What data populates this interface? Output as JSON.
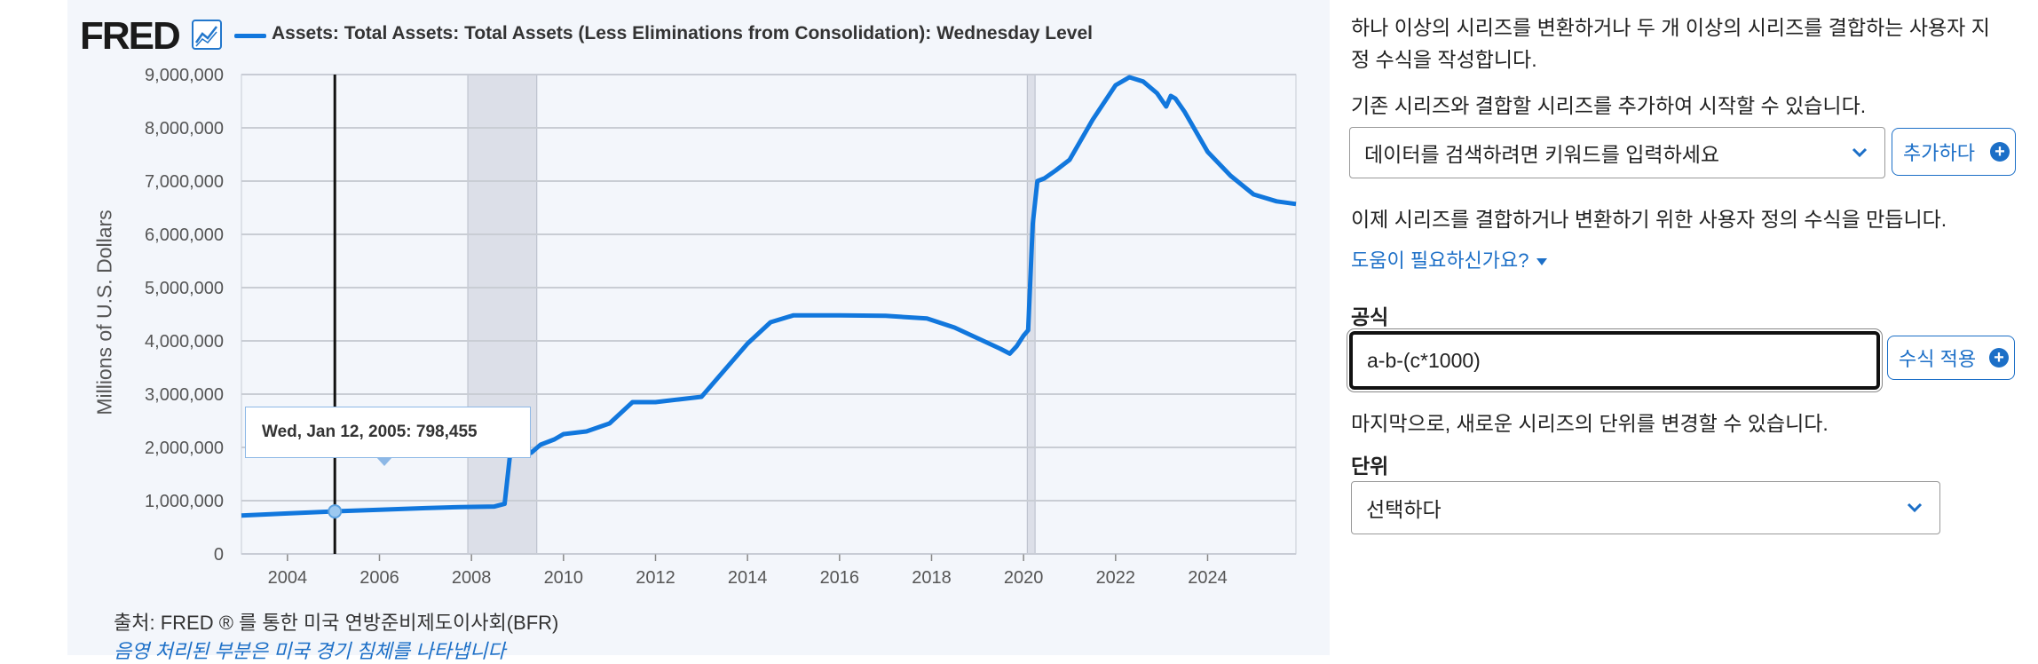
{
  "header": {
    "logo_text": "FRED",
    "series_title": "Assets: Total Assets: Total Assets (Less Eliminations from Consolidation): Wednesday Level"
  },
  "colors": {
    "series": "#1177dd",
    "recession": "#dcdfe8",
    "accent": "#1c6fc7"
  },
  "chart_data": {
    "type": "line",
    "title": "",
    "ylabel": "Millions of U.S. Dollars",
    "xlabel": "",
    "xlim": [
      2003.0,
      2025.92
    ],
    "ylim": [
      0,
      9000000
    ],
    "x_ticks": [
      "2004",
      "2006",
      "2008",
      "2010",
      "2012",
      "2014",
      "2016",
      "2018",
      "2020",
      "2022",
      "2024"
    ],
    "y_ticks": [
      "0",
      "1,000,000",
      "2,000,000",
      "3,000,000",
      "4,000,000",
      "5,000,000",
      "6,000,000",
      "7,000,000",
      "8,000,000",
      "9,000,000"
    ],
    "grid": true,
    "legend": "top-left",
    "recessions": [
      [
        2007.92,
        2009.42
      ],
      [
        2020.08,
        2020.25
      ]
    ],
    "crosshair_x": 2005.03,
    "tooltip": {
      "date": "Wed, Jan 12, 2005:",
      "value": "798,455"
    },
    "series": [
      {
        "name": "Assets: Total Assets: Total Assets (Less Eliminations from Consolidation): Wednesday Level",
        "x": [
          2003.0,
          2004.0,
          2005.0,
          2006.0,
          2007.0,
          2007.75,
          2008.5,
          2008.72,
          2008.85,
          2009.0,
          2009.3,
          2009.5,
          2009.8,
          2010.0,
          2010.5,
          2011.0,
          2011.5,
          2012.0,
          2012.5,
          2013.0,
          2013.5,
          2014.0,
          2014.5,
          2015.0,
          2016.0,
          2017.0,
          2017.9,
          2018.5,
          2019.0,
          2019.5,
          2019.7,
          2019.85,
          2020.0,
          2020.1,
          2020.2,
          2020.3,
          2020.45,
          2020.7,
          2021.0,
          2021.5,
          2022.0,
          2022.3,
          2022.6,
          2022.9,
          2023.1,
          2023.2,
          2023.3,
          2023.5,
          2024.0,
          2024.5,
          2025.0,
          2025.5,
          2025.92
        ],
        "values": [
          720000,
          760000,
          798455,
          830000,
          860000,
          880000,
          890000,
          940000,
          1950000,
          2100000,
          1900000,
          2050000,
          2150000,
          2250000,
          2300000,
          2450000,
          2850000,
          2850000,
          2900000,
          2950000,
          3450000,
          3950000,
          4350000,
          4480000,
          4480000,
          4470000,
          4420000,
          4250000,
          4050000,
          3850000,
          3760000,
          3900000,
          4100000,
          4200000,
          6200000,
          7000000,
          7050000,
          7200000,
          7400000,
          8150000,
          8800000,
          8950000,
          8870000,
          8650000,
          8400000,
          8600000,
          8550000,
          8300000,
          7550000,
          7100000,
          6750000,
          6620000,
          6570000
        ]
      }
    ]
  },
  "footer": {
    "source": "출처: FRED ® 를 통한 미국 연방준비제도이사회(BFR)",
    "recession_note": "음영 처리된 부분은 미국 경기 침체를 나타냅니다"
  },
  "sidebar": {
    "intro": "하나 이상의 시리즈를 변환하거나 두 개 이상의 시리즈를 결합하는 사용자 지",
    "intro2": "정 수식을 작성합니다.",
    "add_series_text": "기존 시리즈와 결합할 시리즈를 추가하여 시작할 수 있습니다.",
    "search_placeholder": "데이터를 검색하려면 키워드를 입력하세요",
    "add_button": "추가하다",
    "formula_intro": "이제 시리즈를 결합하거나 변환하기 위한 사용자 정의 수식을 만듭니다.",
    "help_link": "도움이 필요하신가요?",
    "formula_label": "공식",
    "formula_value": "a-b-(c*1000)",
    "apply_button": "수식 적용",
    "units_text": "마지막으로, 새로운 시리즈의 단위를 변경할 수 있습니다.",
    "units_label": "단위",
    "units_select": "선택하다"
  }
}
